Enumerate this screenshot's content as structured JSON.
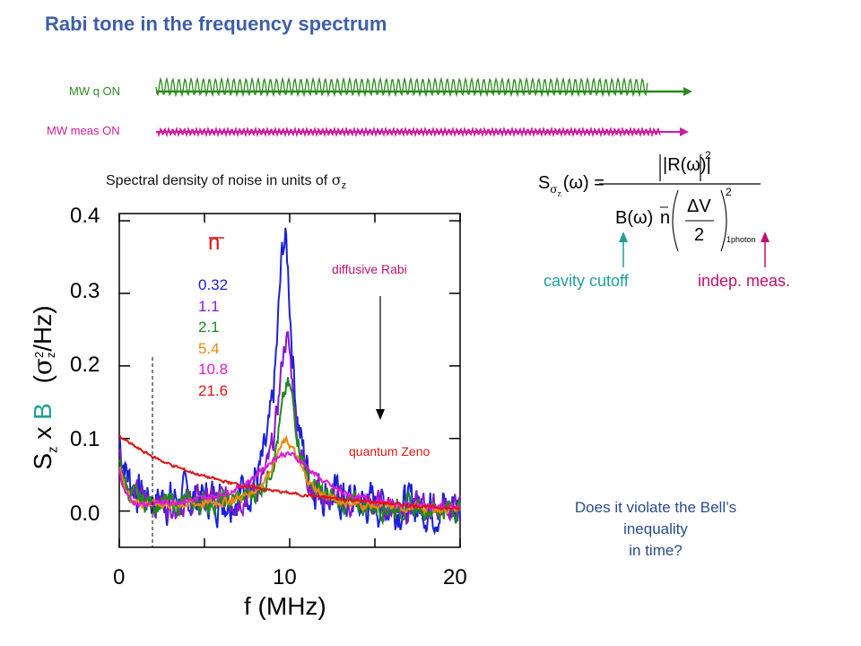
{
  "title": "Rabi tone in the frequency spectrum",
  "mw_q_label": "MW q ON",
  "mw_meas_label": "MW meas ON",
  "subtitle_text": "Spectral density of noise in units of ",
  "subtitle_symbol": "σ",
  "subtitle_sub": "z",
  "formula": {
    "lhs_S": "S",
    "lhs_sub": "σ",
    "lhs_subsub": "z",
    "lhs_arg": "(ω) =",
    "numerator": "|R(ω)|",
    "num_exp": "2",
    "denom_B": "B(ω)",
    "denom_n": "n",
    "frac_top": "ΔV",
    "frac_bottom": "2",
    "frac_exp": "2",
    "photon_sub": "1photon"
  },
  "cavity_cutoff": "cavity cutoff",
  "indep_meas": "indep. meas.",
  "question_lines": [
    "Does it violate the Bell’s",
    "inequality",
    "in time?"
  ],
  "colors": {
    "title": "#3f5fa8",
    "mw_q": "#2c8a1e",
    "mw_meas": "#d21b9b",
    "cavity": "#1f9f9f",
    "indep": "#c0106a"
  },
  "chart_data": {
    "type": "line",
    "xlabel": "f (MHz)",
    "ylabel_parts": {
      "S": "S",
      "S_sub": "z",
      "x": " x ",
      "B": "B",
      "unit_open": "(",
      "sigma": "σ",
      "sigma_exp": "2",
      "sigma_sub": "z",
      "unit_close": "/Hz)"
    },
    "xlim": [
      0,
      20
    ],
    "ylim": [
      -0.05,
      0.41
    ],
    "xticks": [
      0,
      10,
      20
    ],
    "yticks": [
      0.0,
      0.1,
      0.2,
      0.3,
      0.4
    ],
    "xtick_labels": [
      "0",
      "10",
      "20"
    ],
    "ytick_labels": [
      "0.0",
      "0.1",
      "0.2",
      "0.3",
      "0.4"
    ],
    "legend_title": "n",
    "annotations": {
      "diffusive": "diffusive Rabi",
      "zeno": "quantum Zeno"
    },
    "series": [
      {
        "name": "0.32",
        "color": "#1b22d4",
        "peak_x": 9.7,
        "peak": 0.365,
        "width": 0.55,
        "base": 0.085,
        "decay": 1.8,
        "floor": 0.015,
        "noise": 0.03
      },
      {
        "name": "1.1",
        "color": "#8a18c8",
        "peak_x": 9.8,
        "peak": 0.23,
        "width": 0.6,
        "base": 0.07,
        "decay": 2.0,
        "floor": 0.012,
        "noise": 0.02
      },
      {
        "name": "2.1",
        "color": "#1d8a1d",
        "peak_x": 9.9,
        "peak": 0.165,
        "width": 0.7,
        "base": 0.06,
        "decay": 2.2,
        "floor": 0.01,
        "noise": 0.015
      },
      {
        "name": "5.4",
        "color": "#e88a12",
        "peak_x": 9.8,
        "peak": 0.09,
        "width": 1.1,
        "base": 0.055,
        "decay": 2.5,
        "floor": 0.008,
        "noise": 0.006
      },
      {
        "name": "10.8",
        "color": "#e01ad6",
        "peak_x": 9.8,
        "peak": 0.075,
        "width": 2.2,
        "base": 0.05,
        "decay": 3.5,
        "floor": 0.006,
        "noise": 0.004
      },
      {
        "name": "21.6",
        "color": "#e01414",
        "peak_x": 0,
        "peak": 0.095,
        "width": 6.0,
        "base": 0.095,
        "decay": 2.0,
        "floor": 0.0,
        "noise": 0.002
      }
    ]
  }
}
